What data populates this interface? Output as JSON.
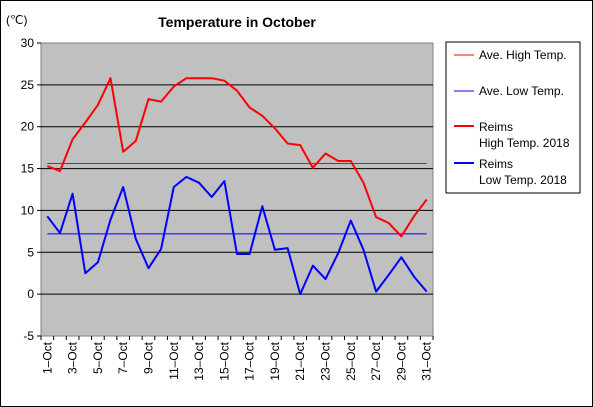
{
  "chart_data": {
    "type": "line",
    "title": "Temperature in October",
    "ylabel": "(℃)",
    "xlabel": "",
    "ylim": [
      -5,
      30
    ],
    "yticks": [
      -5,
      0,
      5,
      10,
      15,
      20,
      25,
      30
    ],
    "grid": true,
    "legend_position": "right",
    "x": [
      "1-Oct",
      "2-Oct",
      "3-Oct",
      "4-Oct",
      "5-Oct",
      "6-Oct",
      "7-Oct",
      "8-Oct",
      "9-Oct",
      "10-Oct",
      "11-Oct",
      "12-Oct",
      "13-Oct",
      "14-Oct",
      "15-Oct",
      "16-Oct",
      "17-Oct",
      "18-Oct",
      "19-Oct",
      "20-Oct",
      "21-Oct",
      "22-Oct",
      "23-Oct",
      "24-Oct",
      "25-Oct",
      "26-Oct",
      "27-Oct",
      "28-Oct",
      "29-Oct",
      "30-Oct",
      "31-Oct"
    ],
    "xtick_labels": [
      "1–Oct",
      "3–Oct",
      "5–Oct",
      "7–Oct",
      "9–Oct",
      "11–Oct",
      "13–Oct",
      "15–Oct",
      "17–Oct",
      "19–Oct",
      "21–Oct",
      "23–Oct",
      "25–Oct",
      "27–Oct",
      "29–Oct",
      "31–Oct"
    ],
    "series": [
      {
        "name": "Ave. High Temp.",
        "color": "#ff0000",
        "style": "thin",
        "values": [
          15.6,
          15.6,
          15.6,
          15.6,
          15.6,
          15.6,
          15.6,
          15.6,
          15.6,
          15.6,
          15.6,
          15.6,
          15.6,
          15.6,
          15.6,
          15.6,
          15.6,
          15.6,
          15.6,
          15.6,
          15.6,
          15.6,
          15.6,
          15.6,
          15.6,
          15.6,
          15.6,
          15.6,
          15.6,
          15.6,
          15.6
        ]
      },
      {
        "name": "Ave. Low Temp.",
        "color": "#0000ff",
        "style": "thin",
        "values": [
          7.2,
          7.2,
          7.2,
          7.2,
          7.2,
          7.2,
          7.2,
          7.2,
          7.2,
          7.2,
          7.2,
          7.2,
          7.2,
          7.2,
          7.2,
          7.2,
          7.2,
          7.2,
          7.2,
          7.2,
          7.2,
          7.2,
          7.2,
          7.2,
          7.2,
          7.2,
          7.2,
          7.2,
          7.2,
          7.2,
          7.2
        ]
      },
      {
        "name": "Reims High Temp. 2018",
        "legend_lines": [
          "Reims",
          "High Temp. 2018"
        ],
        "color": "#ff0000",
        "style": "thick",
        "values": [
          15.3,
          14.7,
          18.5,
          20.5,
          22.6,
          25.8,
          17.0,
          18.3,
          23.3,
          23.0,
          24.8,
          25.8,
          25.8,
          25.8,
          25.5,
          24.3,
          22.3,
          21.3,
          19.8,
          18.0,
          17.8,
          15.1,
          16.8,
          15.9,
          15.9,
          13.3,
          9.2,
          8.5,
          6.9,
          9.3,
          11.3
        ]
      },
      {
        "name": "Reims Low Temp. 2018",
        "legend_lines": [
          "Reims",
          "Low Temp. 2018"
        ],
        "color": "#0000ff",
        "style": "thick",
        "values": [
          9.3,
          7.3,
          12.0,
          2.5,
          3.8,
          8.9,
          12.8,
          6.6,
          3.1,
          5.4,
          12.8,
          14.0,
          13.3,
          11.6,
          13.5,
          4.8,
          4.8,
          10.5,
          5.3,
          5.5,
          0.0,
          3.4,
          1.8,
          4.9,
          8.8,
          5.3,
          0.3,
          2.3,
          4.4,
          2.1,
          0.3
        ]
      }
    ]
  }
}
